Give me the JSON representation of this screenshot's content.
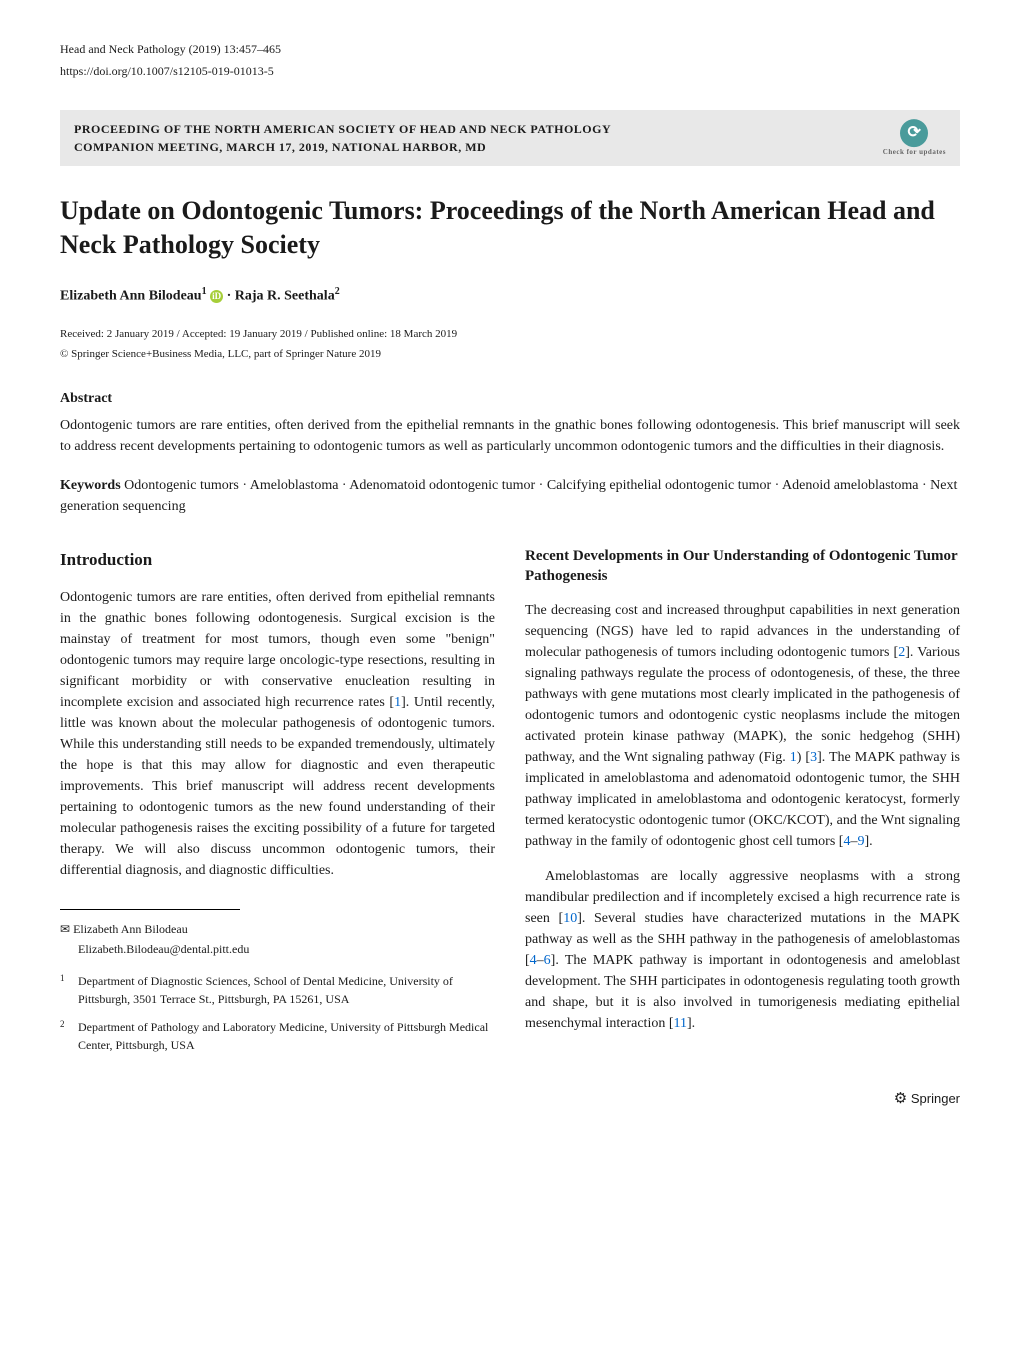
{
  "header": {
    "journal": "Head and Neck Pathology (2019) 13:457–465",
    "doi": "https://doi.org/10.1007/s12105-019-01013-5"
  },
  "proceeding": {
    "line1": "PROCEEDING OF THE NORTH AMERICAN SOCIETY OF HEAD AND NECK PATHOLOGY",
    "line2": "COMPANION MEETING, MARCH 17, 2019, NATIONAL HARBOR, MD",
    "check_label": "Check for updates"
  },
  "title": "Update on Odontogenic Tumors: Proceedings of the North American Head and Neck Pathology Society",
  "authors": {
    "author1_name": "Elizabeth Ann Bilodeau",
    "author1_sup": "1",
    "sep": " · ",
    "author2_name": "Raja R. Seethala",
    "author2_sup": "2"
  },
  "pub_info": "Received: 2 January 2019 / Accepted: 19 January 2019 / Published online: 18 March 2019",
  "copyright": "© Springer Science+Business Media, LLC, part of Springer Nature 2019",
  "abstract": {
    "heading": "Abstract",
    "text": "Odontogenic tumors are rare entities, often derived from the epithelial remnants in the gnathic bones following odontogenesis. This brief manuscript will seek to address recent developments pertaining to odontogenic tumors as well as particularly uncommon odontogenic tumors and the difficulties in their diagnosis."
  },
  "keywords": {
    "label": "Keywords",
    "text": "  Odontogenic tumors · Ameloblastoma · Adenomatoid odontogenic tumor · Calcifying epithelial odontogenic tumor · Adenoid ameloblastoma · Next generation sequencing"
  },
  "left_col": {
    "intro_heading": "Introduction",
    "intro_p1a": "Odontogenic tumors are rare entities, often derived from epithelial remnants in the gnathic bones following odontogenesis. Surgical excision is the mainstay of treatment for most tumors, though even some \"benign\" odontogenic tumors may require large oncologic-type resections, resulting in significant morbidity or with conservative enucleation resulting in incomplete excision and associated high recurrence rates [",
    "intro_cite1": "1",
    "intro_p1b": "]. Until recently, little was known about the molecular pathogenesis of odontogenic tumors. While this understanding still needs to be expanded tremendously, ultimately the hope is that this may allow for diagnostic and even therapeutic improvements. This brief manuscript will address recent developments pertaining to odontogenic tumors as the new found understanding of their molecular pathogenesis raises the exciting possibility of a future for targeted therapy. We will also discuss uncommon odontogenic tumors, their differential diagnosis, and diagnostic difficulties."
  },
  "corresp": {
    "symbol": "✉",
    "name": "  Elizabeth Ann Bilodeau",
    "email": "Elizabeth.Bilodeau@dental.pitt.edu"
  },
  "affil1": {
    "num": "1",
    "text": "Department of Diagnostic Sciences, School of Dental Medicine, University of Pittsburgh, 3501 Terrace St., Pittsburgh, PA 15261, USA"
  },
  "affil2": {
    "num": "2",
    "text": "Department of Pathology and Laboratory Medicine, University of Pittsburgh Medical Center, Pittsburgh, USA"
  },
  "right_col": {
    "subsection_heading": "Recent Developments in Our Understanding of Odontogenic Tumor Pathogenesis",
    "p1a": "The decreasing cost and increased throughput capabilities in next generation sequencing (NGS) have led to rapid advances in the understanding of molecular pathogenesis of tumors including odontogenic tumors [",
    "p1_cite1": "2",
    "p1b": "]. Various signaling pathways regulate the process of odontogenesis, of these, the three pathways with gene mutations most clearly implicated in the pathogenesis of odontogenic tumors and odontogenic cystic neoplasms include the mitogen activated protein kinase pathway (MAPK), the sonic hedgehog (SHH) pathway, and the Wnt signaling pathway (Fig. ",
    "p1_fig": "1",
    "p1c": ") [",
    "p1_cite2": "3",
    "p1d": "]. The MAPK pathway is implicated in ameloblastoma and adenomatoid odontogenic tumor, the SHH pathway implicated in ameloblastoma and odontogenic keratocyst, formerly termed keratocystic odontogenic tumor (OKC/KCOT), and the Wnt signaling pathway in the family of odontogenic ghost cell tumors [",
    "p1_cite3": "4",
    "p1_dash": "–",
    "p1_cite4": "9",
    "p1e": "].",
    "p2a": "Ameloblastomas are locally aggressive neoplasms with a strong mandibular predilection and if incompletely excised a high recurrence rate is seen [",
    "p2_cite1": "10",
    "p2b": "]. Several studies have characterized mutations in the MAPK pathway as well as the SHH pathway in the pathogenesis of ameloblastomas [",
    "p2_cite2": "4",
    "p2_dash": "–",
    "p2_cite3": "6",
    "p2c": "]. The MAPK pathway is important in odontogenesis and ameloblast development. The SHH participates in odontogenesis regulating tooth growth and shape, but it is also involved in tumorigenesis mediating epithelial mesenchymal interaction [",
    "p2_cite4": "11",
    "p2d": "]."
  },
  "footer": {
    "springer": "Springer"
  }
}
